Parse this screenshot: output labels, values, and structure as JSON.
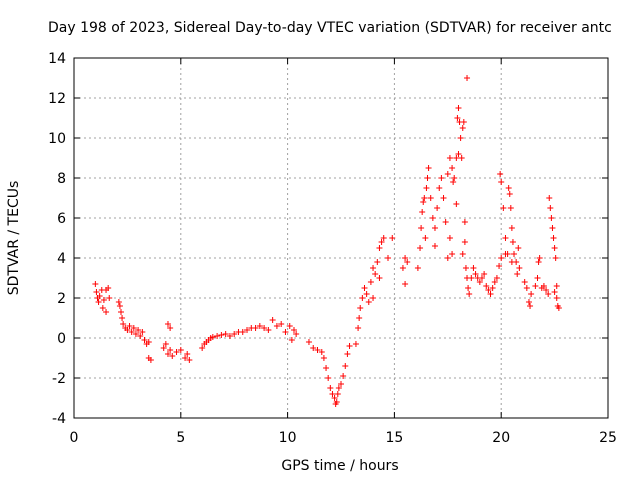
{
  "chart_data": {
    "type": "scatter",
    "title": "Day 198 of 2023, Sidereal Day-to-day VTEC variation (SDTVAR) for receiver antc",
    "xlabel": "GPS time / hours",
    "ylabel": "SDTVAR / TECUs",
    "xlim": [
      0,
      25
    ],
    "ylim": [
      -4,
      14
    ],
    "xticks": [
      0,
      5,
      10,
      15,
      20,
      25
    ],
    "yticks": [
      -4,
      -2,
      0,
      2,
      4,
      6,
      8,
      10,
      12,
      14
    ],
    "grid": true,
    "marker": "+",
    "color": "#ff0000",
    "series": [
      {
        "name": "SDTVAR",
        "points": [
          [
            1.0,
            2.7
          ],
          [
            1.05,
            2.3
          ],
          [
            1.1,
            2.0
          ],
          [
            1.15,
            1.8
          ],
          [
            1.2,
            2.1
          ],
          [
            1.3,
            2.4
          ],
          [
            1.35,
            1.5
          ],
          [
            1.4,
            1.9
          ],
          [
            1.5,
            2.4
          ],
          [
            1.6,
            2.5
          ],
          [
            1.65,
            2.0
          ],
          [
            1.5,
            1.3
          ],
          [
            2.1,
            1.8
          ],
          [
            2.15,
            1.6
          ],
          [
            2.2,
            1.3
          ],
          [
            2.25,
            1.0
          ],
          [
            2.3,
            0.7
          ],
          [
            2.4,
            0.5
          ],
          [
            2.5,
            0.4
          ],
          [
            2.6,
            0.6
          ],
          [
            2.7,
            0.3
          ],
          [
            2.8,
            0.5
          ],
          [
            2.9,
            0.2
          ],
          [
            3.0,
            0.4
          ],
          [
            3.1,
            0.1
          ],
          [
            3.2,
            0.3
          ],
          [
            3.3,
            -0.1
          ],
          [
            3.4,
            -0.3
          ],
          [
            3.5,
            -0.2
          ],
          [
            3.5,
            -1.0
          ],
          [
            3.6,
            -1.1
          ],
          [
            4.2,
            -0.5
          ],
          [
            4.3,
            -0.3
          ],
          [
            4.4,
            -0.8
          ],
          [
            4.5,
            -0.6
          ],
          [
            4.4,
            0.7
          ],
          [
            4.5,
            0.5
          ],
          [
            4.6,
            -0.9
          ],
          [
            4.8,
            -0.7
          ],
          [
            5.0,
            -0.6
          ],
          [
            5.2,
            -1.0
          ],
          [
            5.3,
            -0.8
          ],
          [
            5.4,
            -1.1
          ],
          [
            6.0,
            -0.5
          ],
          [
            6.1,
            -0.3
          ],
          [
            6.2,
            -0.2
          ],
          [
            6.3,
            -0.1
          ],
          [
            6.4,
            0.0
          ],
          [
            6.5,
            0.05
          ],
          [
            6.7,
            0.1
          ],
          [
            6.9,
            0.15
          ],
          [
            7.1,
            0.2
          ],
          [
            7.3,
            0.1
          ],
          [
            7.5,
            0.2
          ],
          [
            7.7,
            0.3
          ],
          [
            7.9,
            0.3
          ],
          [
            8.1,
            0.4
          ],
          [
            8.3,
            0.5
          ],
          [
            8.5,
            0.5
          ],
          [
            8.7,
            0.6
          ],
          [
            8.9,
            0.5
          ],
          [
            9.1,
            0.4
          ],
          [
            9.3,
            0.9
          ],
          [
            9.5,
            0.6
          ],
          [
            9.7,
            0.7
          ],
          [
            9.9,
            0.3
          ],
          [
            10.1,
            0.6
          ],
          [
            10.3,
            0.4
          ],
          [
            10.4,
            0.2
          ],
          [
            10.2,
            -0.1
          ],
          [
            11.0,
            -0.2
          ],
          [
            11.2,
            -0.5
          ],
          [
            11.4,
            -0.6
          ],
          [
            11.6,
            -0.7
          ],
          [
            11.7,
            -1.0
          ],
          [
            11.8,
            -1.5
          ],
          [
            11.9,
            -2.0
          ],
          [
            12.0,
            -2.5
          ],
          [
            12.1,
            -2.8
          ],
          [
            12.2,
            -3.0
          ],
          [
            12.25,
            -3.3
          ],
          [
            12.3,
            -3.2
          ],
          [
            12.35,
            -2.8
          ],
          [
            12.4,
            -2.5
          ],
          [
            12.5,
            -2.3
          ],
          [
            12.6,
            -1.9
          ],
          [
            12.7,
            -1.4
          ],
          [
            12.8,
            -0.8
          ],
          [
            12.9,
            -0.4
          ],
          [
            13.2,
            -0.3
          ],
          [
            13.3,
            0.5
          ],
          [
            13.35,
            1.0
          ],
          [
            13.4,
            1.5
          ],
          [
            13.5,
            2.0
          ],
          [
            13.6,
            2.5
          ],
          [
            13.7,
            2.2
          ],
          [
            13.8,
            1.8
          ],
          [
            13.9,
            2.8
          ],
          [
            14.0,
            3.5
          ],
          [
            14.1,
            3.2
          ],
          [
            14.2,
            3.8
          ],
          [
            14.3,
            4.5
          ],
          [
            14.4,
            4.8
          ],
          [
            14.5,
            5.0
          ],
          [
            14.3,
            3.0
          ],
          [
            14.0,
            2.0
          ],
          [
            14.9,
            5.0
          ],
          [
            14.7,
            4.0
          ],
          [
            15.4,
            3.5
          ],
          [
            15.5,
            4.0
          ],
          [
            15.5,
            2.7
          ],
          [
            15.6,
            3.8
          ],
          [
            16.1,
            3.5
          ],
          [
            16.2,
            4.5
          ],
          [
            16.25,
            5.5
          ],
          [
            16.3,
            6.3
          ],
          [
            16.35,
            6.8
          ],
          [
            16.4,
            7.0
          ],
          [
            16.45,
            5.0
          ],
          [
            16.5,
            7.5
          ],
          [
            16.55,
            8.0
          ],
          [
            16.6,
            8.5
          ],
          [
            16.7,
            7.0
          ],
          [
            16.8,
            6.0
          ],
          [
            16.9,
            5.5
          ],
          [
            17.0,
            6.5
          ],
          [
            17.1,
            7.5
          ],
          [
            17.2,
            8.0
          ],
          [
            17.3,
            7.0
          ],
          [
            17.4,
            5.8
          ],
          [
            17.5,
            8.2
          ],
          [
            17.6,
            9.0
          ],
          [
            17.7,
            8.5
          ],
          [
            17.75,
            7.8
          ],
          [
            17.8,
            8.0
          ],
          [
            17.9,
            9.0
          ],
          [
            18.0,
            9.2
          ],
          [
            17.95,
            11.0
          ],
          [
            18.0,
            11.5
          ],
          [
            18.05,
            10.8
          ],
          [
            18.1,
            10.0
          ],
          [
            18.15,
            9.0
          ],
          [
            18.2,
            10.5
          ],
          [
            18.25,
            10.8
          ],
          [
            17.9,
            6.7
          ],
          [
            18.3,
            5.8
          ],
          [
            17.5,
            4.0
          ],
          [
            17.6,
            5.0
          ],
          [
            17.7,
            4.2
          ],
          [
            16.9,
            4.6
          ],
          [
            18.4,
            13.0
          ],
          [
            18.2,
            4.2
          ],
          [
            18.3,
            4.8
          ],
          [
            18.35,
            3.5
          ],
          [
            18.4,
            3.0
          ],
          [
            18.45,
            2.5
          ],
          [
            18.5,
            2.2
          ],
          [
            18.6,
            3.0
          ],
          [
            18.7,
            3.5
          ],
          [
            18.8,
            3.2
          ],
          [
            18.9,
            3.0
          ],
          [
            19.0,
            2.8
          ],
          [
            19.1,
            3.0
          ],
          [
            19.2,
            3.2
          ],
          [
            19.3,
            2.6
          ],
          [
            19.4,
            2.4
          ],
          [
            19.5,
            2.2
          ],
          [
            19.6,
            2.5
          ],
          [
            19.7,
            2.8
          ],
          [
            19.8,
            3.0
          ],
          [
            19.9,
            3.6
          ],
          [
            20.0,
            4.0
          ],
          [
            19.95,
            8.2
          ],
          [
            20.0,
            7.8
          ],
          [
            20.1,
            6.5
          ],
          [
            20.2,
            5.0
          ],
          [
            20.3,
            4.2
          ],
          [
            20.35,
            7.5
          ],
          [
            20.4,
            7.2
          ],
          [
            20.45,
            6.5
          ],
          [
            20.5,
            5.5
          ],
          [
            20.55,
            4.8
          ],
          [
            20.6,
            4.2
          ],
          [
            20.7,
            3.8
          ],
          [
            20.75,
            3.2
          ],
          [
            20.8,
            4.5
          ],
          [
            20.85,
            3.5
          ],
          [
            20.2,
            4.2
          ],
          [
            20.5,
            3.8
          ],
          [
            21.1,
            2.8
          ],
          [
            21.2,
            2.5
          ],
          [
            21.3,
            1.8
          ],
          [
            21.35,
            1.6
          ],
          [
            21.4,
            2.2
          ],
          [
            21.6,
            2.6
          ],
          [
            21.7,
            3.0
          ],
          [
            21.75,
            3.8
          ],
          [
            21.8,
            4.0
          ],
          [
            21.9,
            2.5
          ],
          [
            22.0,
            2.6
          ],
          [
            22.1,
            2.4
          ],
          [
            22.2,
            2.2
          ],
          [
            22.25,
            7.0
          ],
          [
            22.3,
            6.5
          ],
          [
            22.35,
            6.0
          ],
          [
            22.4,
            5.5
          ],
          [
            22.45,
            5.0
          ],
          [
            22.5,
            4.5
          ],
          [
            22.55,
            4.0
          ],
          [
            22.6,
            2.0
          ],
          [
            22.65,
            1.6
          ],
          [
            22.7,
            1.5
          ],
          [
            22.5,
            2.3
          ],
          [
            22.6,
            2.6
          ]
        ]
      }
    ]
  }
}
